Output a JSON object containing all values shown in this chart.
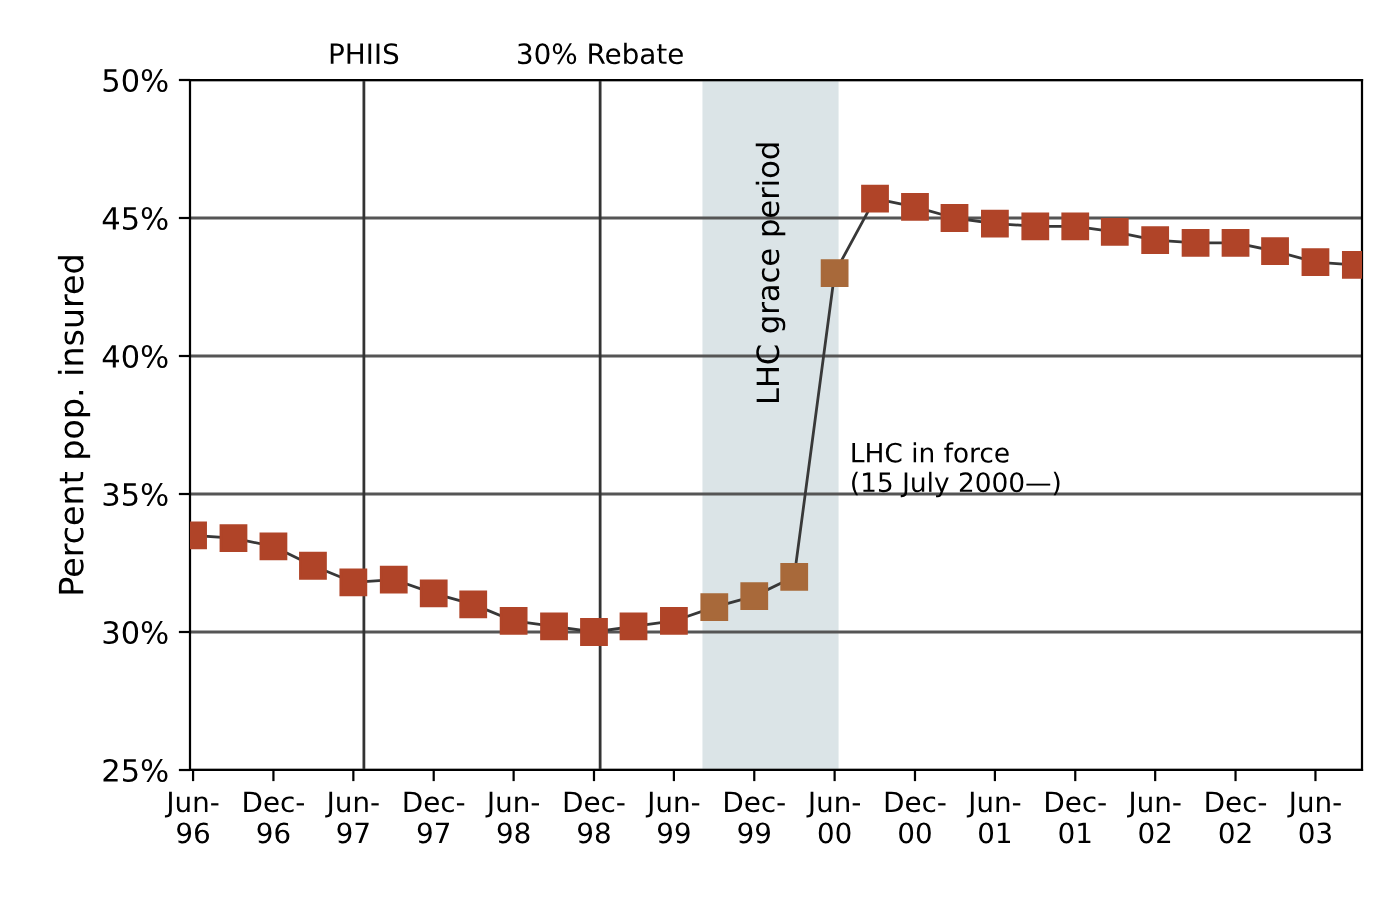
{
  "chart_data": {
    "type": "line",
    "ylabel": "Percent pop. insured",
    "x": [
      "1996-06",
      "1996-09",
      "1996-12",
      "1997-03",
      "1997-06",
      "1997-09",
      "1997-12",
      "1998-03",
      "1998-06",
      "1998-09",
      "1998-12",
      "1999-03",
      "1999-06",
      "1999-09",
      "1999-12",
      "2000-03",
      "2000-06",
      "2000-09",
      "2000-12",
      "2001-03",
      "2001-06",
      "2001-09",
      "2001-12",
      "2002-03",
      "2002-06",
      "2002-09",
      "2002-12",
      "2003-03",
      "2003-06",
      "2003-09"
    ],
    "series": [
      {
        "color": "#383838",
        "marker": "square",
        "line_style": "solid",
        "colors": [
          "#b04428",
          "#b04428",
          "#b04428",
          "#b04428",
          "#b04428",
          "#b04428",
          "#b04428",
          "#b04428",
          "#b04428",
          "#b04428",
          "#b04428",
          "#b04428",
          "#b04428",
          "#a8693a",
          "#a8693a",
          "#a8693a",
          "#a8693a",
          "#b04428",
          "#b04428",
          "#b04428",
          "#b04428",
          "#b04428",
          "#b04428",
          "#b04428",
          "#b04428",
          "#b04428",
          "#b04428",
          "#b04428",
          "#b04428",
          "#b04428"
        ],
        "values": [
          33.5,
          33.4,
          33.1,
          32.4,
          31.8,
          31.9,
          31.4,
          31.0,
          30.4,
          30.2,
          30.0,
          30.2,
          30.4,
          30.9,
          31.3,
          32.0,
          43.0,
          45.7,
          45.4,
          45.0,
          44.8,
          44.7,
          44.7,
          44.5,
          44.2,
          44.1,
          44.1,
          43.8,
          43.4,
          43.3
        ]
      }
    ],
    "xlim": [
      "1996-05-25",
      "2003-09-15"
    ],
    "xticks": [
      {
        "value": "1996-06",
        "label": "Jun-\n96"
      },
      {
        "value": "1996-12",
        "label": "Dec-\n96"
      },
      {
        "value": "1997-06",
        "label": "Jun-\n97"
      },
      {
        "value": "1997-12",
        "label": "Dec-\n97"
      },
      {
        "value": "1998-06",
        "label": "Jun-\n98"
      },
      {
        "value": "1998-12",
        "label": "Dec-\n98"
      },
      {
        "value": "1999-06",
        "label": "Jun-\n99"
      },
      {
        "value": "1999-12",
        "label": "Dec-\n99"
      },
      {
        "value": "2000-06",
        "label": "Jun-\n00"
      },
      {
        "value": "2000-12",
        "label": "Dec-\n00"
      },
      {
        "value": "2001-06",
        "label": "Jun-\n01"
      },
      {
        "value": "2001-12",
        "label": "Dec-\n01"
      },
      {
        "value": "2002-06",
        "label": "Jun-\n02"
      },
      {
        "value": "2002-12",
        "label": "Dec-\n02"
      },
      {
        "value": "2003-06",
        "label": "Jun-\n03"
      }
    ],
    "ylim": [
      25,
      50
    ],
    "yticks": [
      {
        "value": 25,
        "label": "25%"
      },
      {
        "value": 30,
        "label": "30%"
      },
      {
        "value": 35,
        "label": "35%"
      },
      {
        "value": 40,
        "label": "40%"
      },
      {
        "value": 45,
        "label": "45%"
      },
      {
        "value": 50,
        "label": "50%"
      }
    ],
    "grid": "y",
    "ref_lines": [
      {
        "axis": "x",
        "value": "1997-06-25",
        "label": "PHIIS",
        "color": "#333333"
      },
      {
        "axis": "x",
        "value": "1998-12-15",
        "label": "30% Rebate",
        "color": "#333333"
      }
    ],
    "bands": [
      {
        "axis": "x",
        "from": "1999-08-05",
        "to": "2000-06-10",
        "label": "LHC grace period",
        "color": "#dbe4e7"
      }
    ],
    "annotations": [
      "LHC in force\n(15 July 2000—)"
    ]
  }
}
